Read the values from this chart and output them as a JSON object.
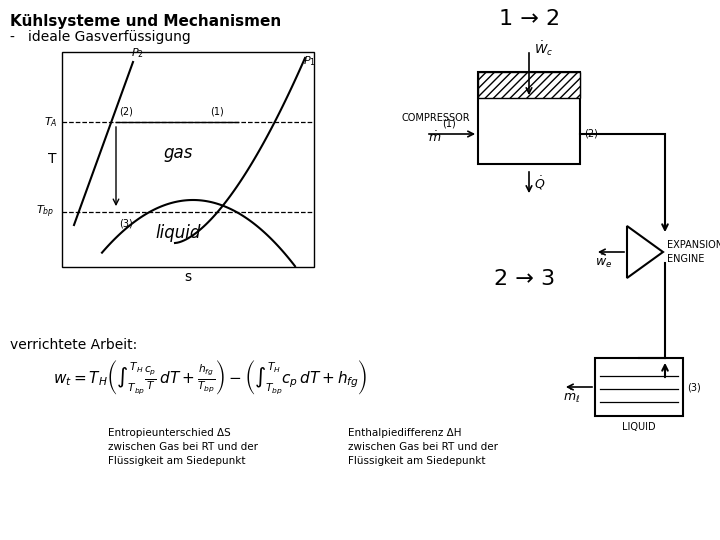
{
  "title_line1": "Kühlsysteme und Mechanismen",
  "title_line2": "-   ideale Gasverfüssigung",
  "label_12": "1 → 2",
  "label_23": "2 → 3",
  "label_gas": "gas",
  "label_liquid": "liquid",
  "label_T": "T",
  "label_s": "s",
  "label_compressor": "COMPRESSOR",
  "label_expansion": "EXPANSION\nENGINE",
  "label_liquid_tank": "LIQUID",
  "verrichtete": "verrichtete Arbeit:",
  "entropy_text": "Entropieunterschied ΔS\nzwischen Gas bei RT und der\nFlüssigkeit am Siedepunkt",
  "enthalpy_text": "Enthalpiedifferenz ΔH\nzwischen Gas bei RT und der\nFlüssigkeit am Siedepunkt",
  "bg_color": "#ffffff",
  "line_color": "#000000"
}
